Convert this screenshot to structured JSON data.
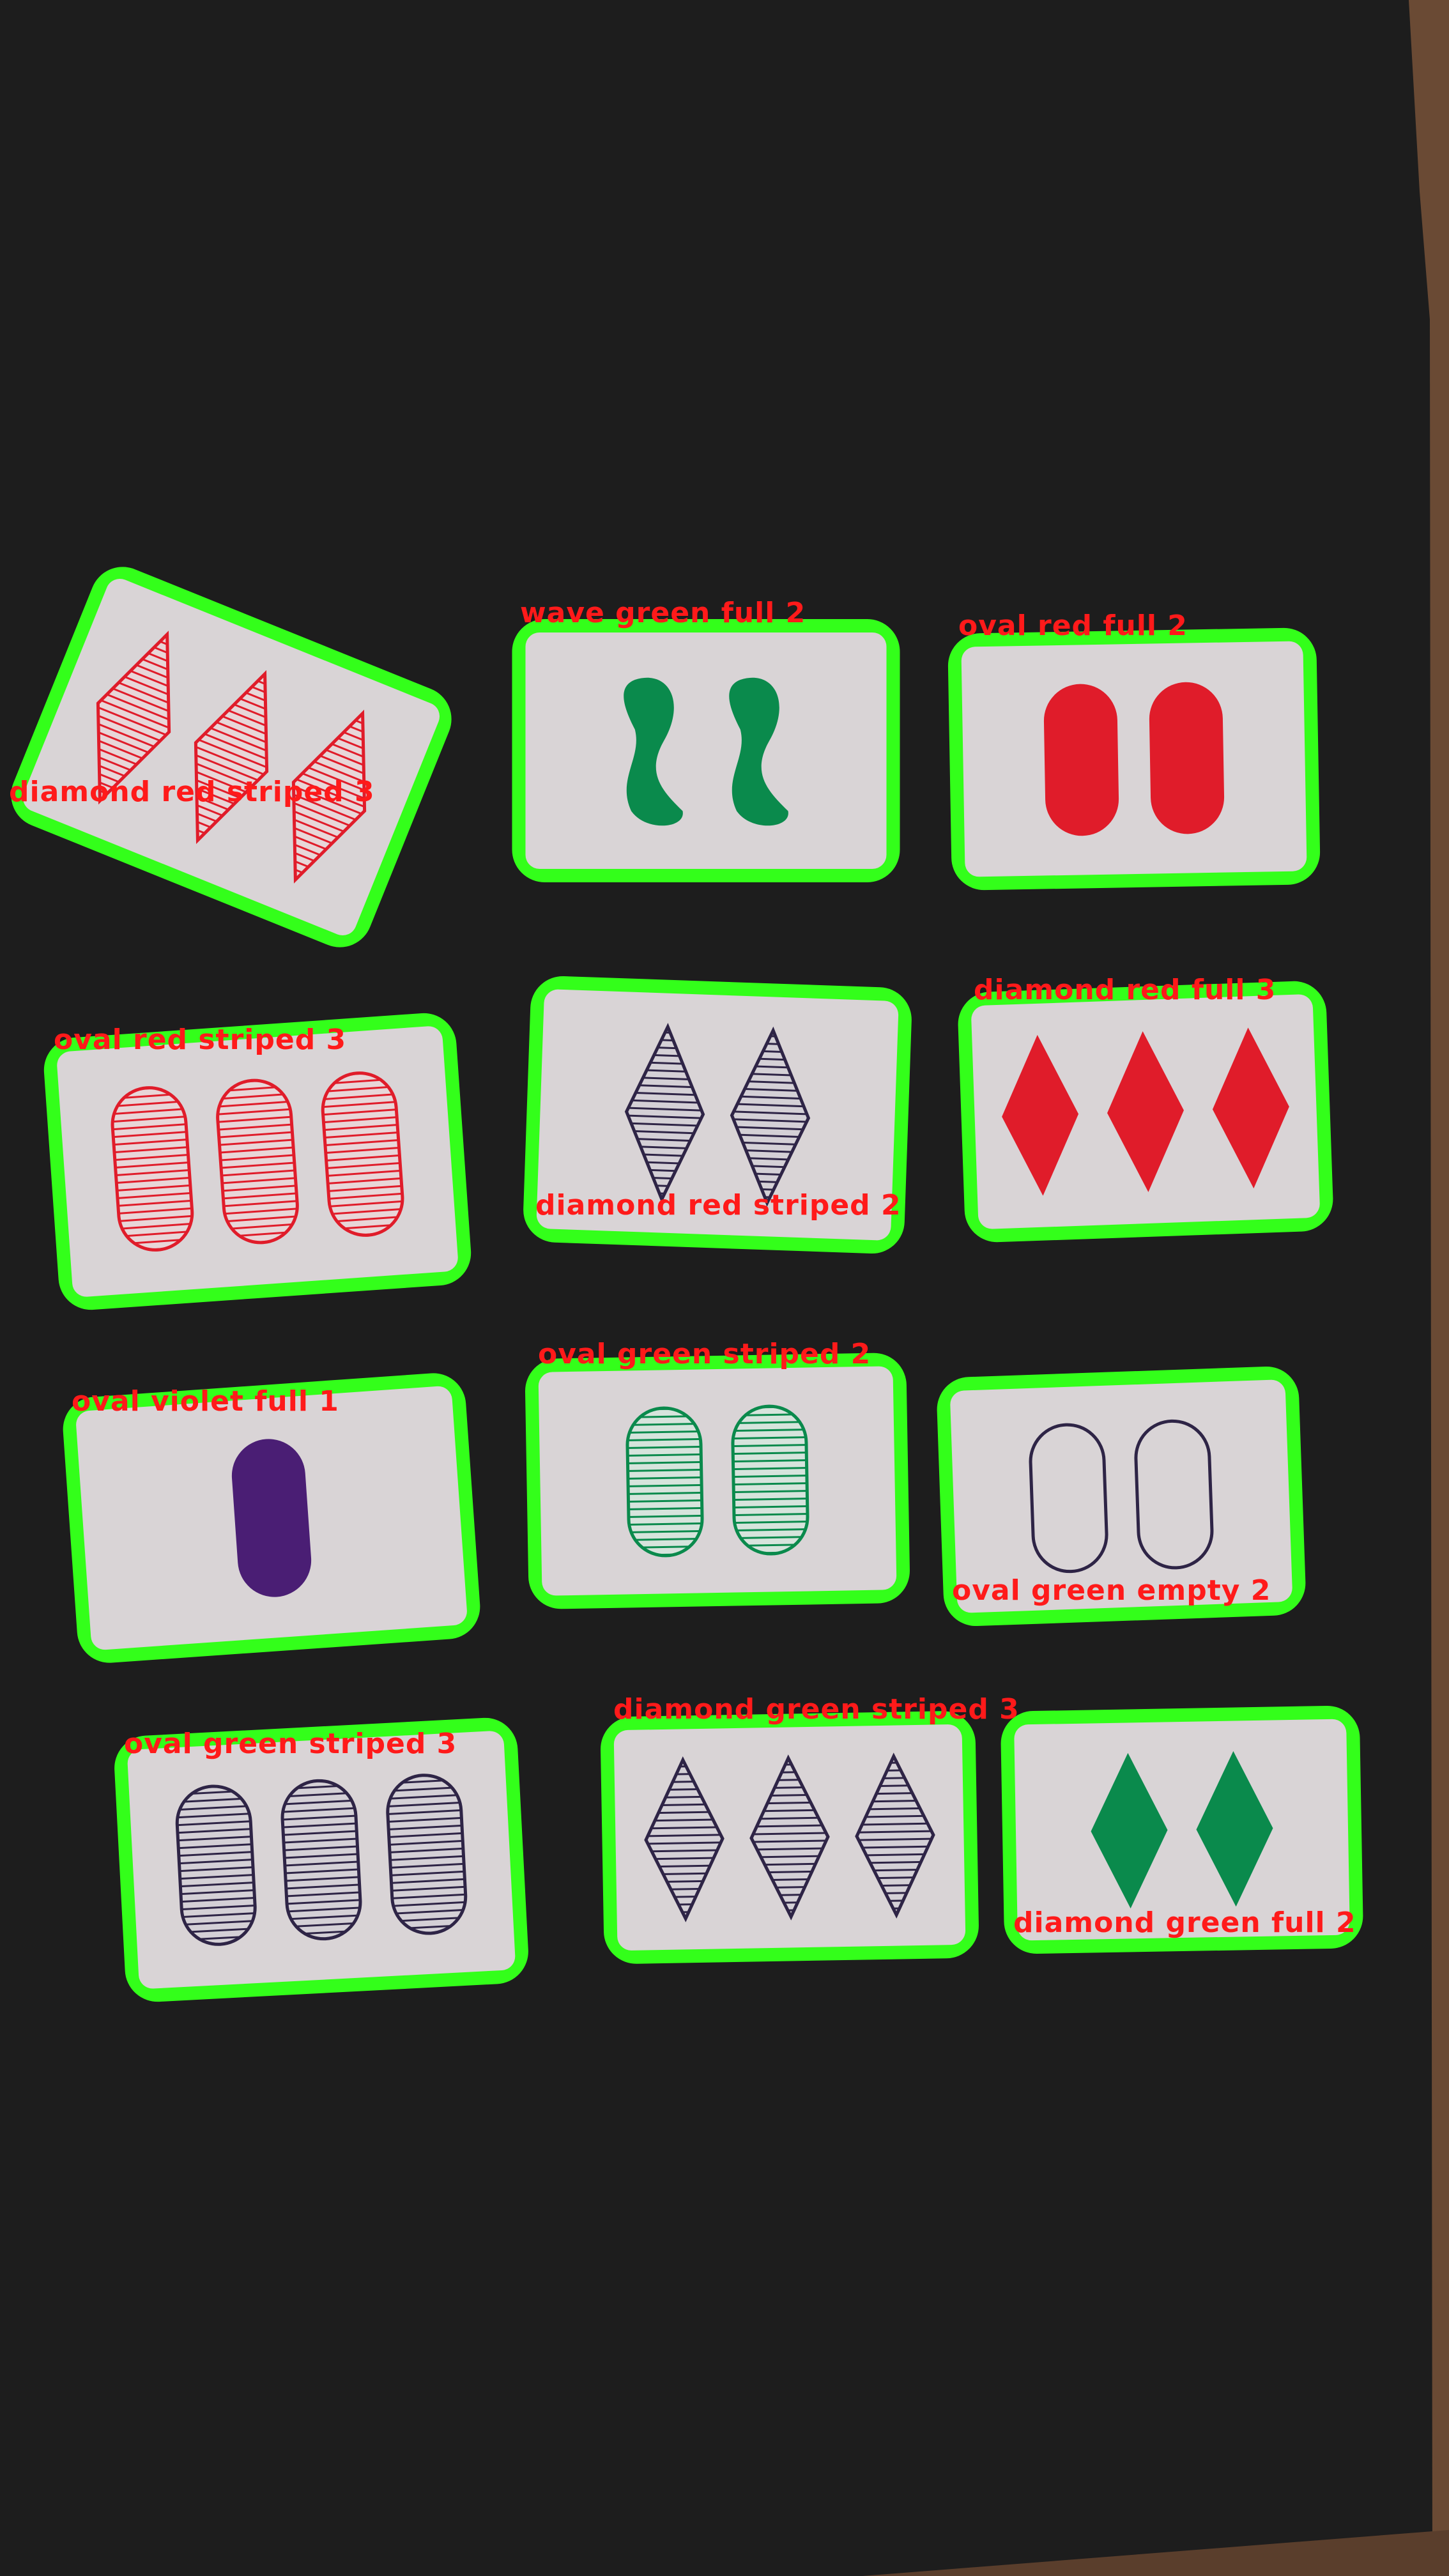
{
  "colors": {
    "table": "#1d1d1d",
    "wood": "#6a4a34",
    "card": "#d9d4d6",
    "box": "#33ff1a",
    "label": "#ff1a1a",
    "red": "#e01c2a",
    "green": "#0a8a4c",
    "violet": "#4a1e74",
    "outline_dark": "#2e2446"
  },
  "cards": [
    {
      "label": "diamond red striped 3",
      "shape": "diamond",
      "color": "red",
      "fill": "striped",
      "count": 3
    },
    {
      "label": "wave green full 2",
      "shape": "wave",
      "color": "green",
      "fill": "full",
      "count": 2
    },
    {
      "label": "oval red full 2",
      "shape": "oval",
      "color": "red",
      "fill": "full",
      "count": 2
    },
    {
      "label": "oval red striped 3",
      "shape": "oval",
      "color": "red",
      "fill": "striped",
      "count": 3
    },
    {
      "label": "diamond red striped 2",
      "shape": "diamond",
      "color": "outline_dark",
      "fill": "striped",
      "count": 2
    },
    {
      "label": "diamond red full 3",
      "shape": "diamond",
      "color": "red",
      "fill": "full",
      "count": 3
    },
    {
      "label": "oval violet full 1",
      "shape": "oval",
      "color": "violet",
      "fill": "full",
      "count": 1
    },
    {
      "label": "oval green striped 2",
      "shape": "oval",
      "color": "green",
      "fill": "striped",
      "count": 2
    },
    {
      "label": "oval green empty 2",
      "shape": "oval",
      "color": "outline_dark",
      "fill": "empty",
      "count": 2
    },
    {
      "label": "oval green striped 3",
      "shape": "oval",
      "color": "outline_dark",
      "fill": "striped",
      "count": 3
    },
    {
      "label": "diamond green striped 3",
      "shape": "diamond",
      "color": "outline_dark",
      "fill": "striped",
      "count": 3
    },
    {
      "label": "diamond green full 2",
      "shape": "diamond",
      "color": "green",
      "fill": "full",
      "count": 2
    }
  ]
}
